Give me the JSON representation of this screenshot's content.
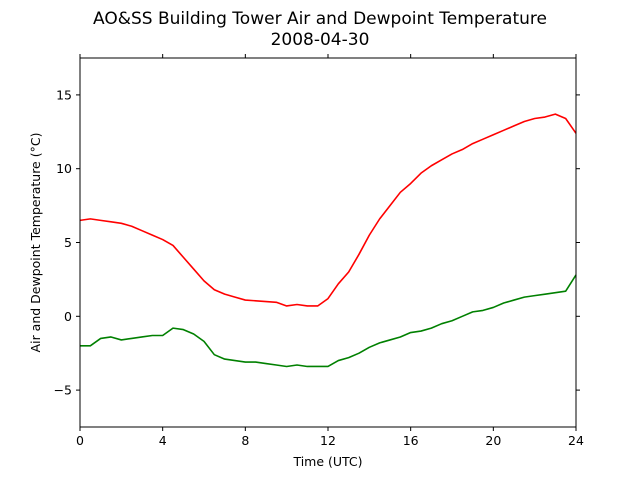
{
  "chart_data": {
    "type": "line",
    "title": "AO&SS Building Tower Air and Dewpoint Temperature",
    "subtitle": "2008-04-30",
    "xlabel": "Time (UTC)",
    "ylabel": "Air and Dewpoint Temperature (°C)",
    "xlim": [
      0,
      24
    ],
    "ylim": [
      -7.5,
      17.5
    ],
    "xticks": [
      0,
      4,
      8,
      12,
      16,
      20,
      24
    ],
    "yticks": [
      -5,
      0,
      5,
      10,
      15
    ],
    "ytick_labels": [
      "−5",
      "0",
      "5",
      "10",
      "15"
    ],
    "grid": false,
    "legend": "none",
    "x": [
      0,
      0.5,
      1,
      1.5,
      2,
      2.5,
      3,
      3.5,
      4,
      4.5,
      5,
      5.5,
      6,
      6.5,
      7,
      7.5,
      8,
      8.5,
      9,
      9.5,
      10,
      10.5,
      11,
      11.5,
      12,
      12.5,
      13,
      13.5,
      14,
      14.5,
      15,
      15.5,
      16,
      16.5,
      17,
      17.5,
      18,
      18.5,
      19,
      19.5,
      20,
      20.5,
      21,
      21.5,
      22,
      22.5,
      23,
      23.5,
      24
    ],
    "series": [
      {
        "color": "#ff0000",
        "values": [
          6.5,
          6.6,
          6.5,
          6.4,
          6.3,
          6.1,
          5.8,
          5.5,
          5.2,
          4.8,
          4.0,
          3.2,
          2.4,
          1.8,
          1.5,
          1.3,
          1.1,
          1.05,
          1.0,
          0.95,
          0.7,
          0.8,
          0.7,
          0.7,
          1.2,
          2.2,
          3.0,
          4.2,
          5.5,
          6.6,
          7.5,
          8.4,
          9.0,
          9.7,
          10.2,
          10.6,
          11.0,
          11.3,
          11.7,
          12.0,
          12.3,
          12.6,
          12.9,
          13.2,
          13.4,
          13.5,
          13.7,
          13.4,
          12.4
        ]
      },
      {
        "color": "#008000",
        "values": [
          -2.0,
          -2.0,
          -1.5,
          -1.4,
          -1.6,
          -1.5,
          -1.4,
          -1.3,
          -1.3,
          -0.8,
          -0.9,
          -1.2,
          -1.7,
          -2.6,
          -2.9,
          -3.0,
          -3.1,
          -3.1,
          -3.2,
          -3.3,
          -3.4,
          -3.3,
          -3.4,
          -3.4,
          -3.4,
          -3.0,
          -2.8,
          -2.5,
          -2.1,
          -1.8,
          -1.6,
          -1.4,
          -1.1,
          -1.0,
          -0.8,
          -0.5,
          -0.3,
          0.0,
          0.3,
          0.4,
          0.6,
          0.9,
          1.1,
          1.3,
          1.4,
          1.5,
          1.6,
          1.7,
          2.8
        ]
      }
    ]
  }
}
